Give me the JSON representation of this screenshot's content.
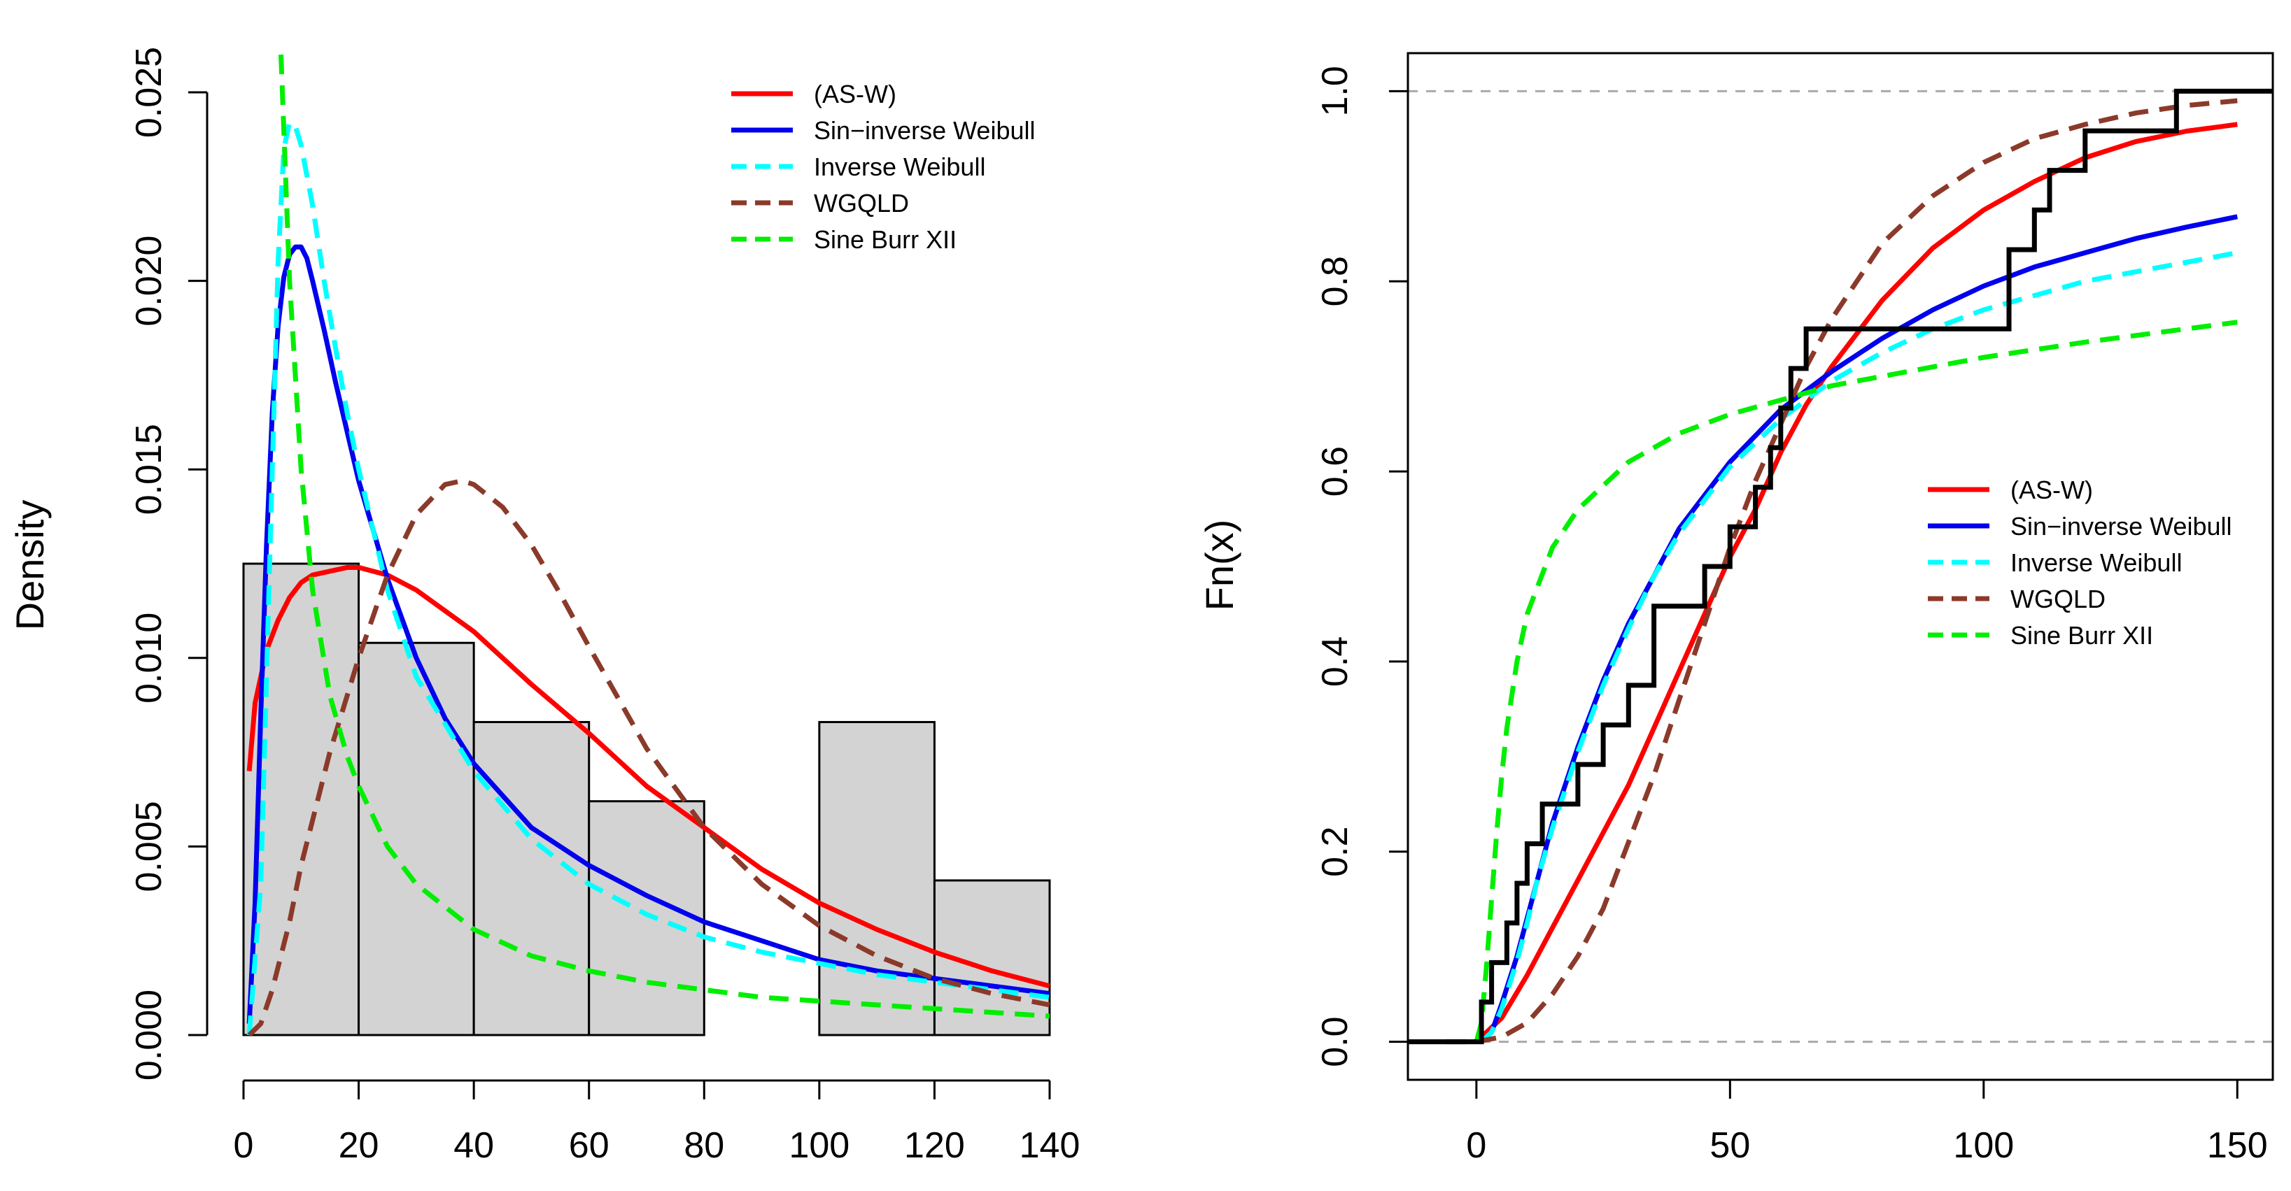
{
  "chart_data": [
    {
      "type": "histogram",
      "title": "",
      "xlabel": "",
      "ylabel": "Density",
      "xlim": [
        0,
        140
      ],
      "ylim": [
        0,
        0.025
      ],
      "x_ticks": [
        "0",
        "20",
        "40",
        "60",
        "80",
        "100",
        "120",
        "140"
      ],
      "x_tick_values": [
        0,
        20,
        40,
        60,
        80,
        100,
        120,
        140
      ],
      "y_ticks": [
        "0.000",
        "0.005",
        "0.010",
        "0.015",
        "0.020",
        "0.025"
      ],
      "y_tick_values": [
        0,
        0.005,
        0.01,
        0.015,
        0.02,
        0.025
      ],
      "bins": [
        {
          "from": 0,
          "to": 20,
          "density": 0.0125
        },
        {
          "from": 20,
          "to": 40,
          "density": 0.0104
        },
        {
          "from": 40,
          "to": 60,
          "density": 0.0083
        },
        {
          "from": 60,
          "to": 80,
          "density": 0.0062
        },
        {
          "from": 80,
          "to": 100,
          "density": 0.0
        },
        {
          "from": 100,
          "to": 120,
          "density": 0.0083
        },
        {
          "from": 120,
          "to": 140,
          "density": 0.0041
        }
      ],
      "legend_position": "top-right",
      "series": [
        {
          "name": "(AS-W)",
          "color": "#ff0000",
          "dashed": false,
          "x": [
            1,
            2,
            4,
            6,
            8,
            10,
            12,
            15,
            18,
            20,
            25,
            30,
            40,
            50,
            60,
            70,
            80,
            90,
            100,
            110,
            120,
            130,
            140
          ],
          "y": [
            0.007,
            0.0088,
            0.0102,
            0.011,
            0.0116,
            0.012,
            0.0122,
            0.0123,
            0.0124,
            0.0124,
            0.0122,
            0.0118,
            0.0107,
            0.0093,
            0.008,
            0.0066,
            0.0055,
            0.0044,
            0.0035,
            0.0028,
            0.0022,
            0.0017,
            0.0013
          ]
        },
        {
          "name": "Sin−inverse Weibull",
          "color": "#0000ee",
          "dashed": false,
          "x": [
            1,
            2,
            3,
            4,
            5,
            6,
            7,
            8,
            9,
            10,
            11,
            12,
            14,
            16,
            18,
            20,
            25,
            30,
            35,
            40,
            50,
            60,
            70,
            80,
            90,
            100,
            110,
            120,
            130,
            140
          ],
          "y": [
            0.0003,
            0.0035,
            0.0085,
            0.013,
            0.0165,
            0.0188,
            0.0201,
            0.0207,
            0.0209,
            0.0209,
            0.0206,
            0.02,
            0.0187,
            0.0173,
            0.016,
            0.0147,
            0.0121,
            0.01,
            0.0084,
            0.0072,
            0.0055,
            0.0045,
            0.0037,
            0.003,
            0.0025,
            0.002,
            0.0017,
            0.0015,
            0.0013,
            0.0011
          ]
        },
        {
          "name": "Inverse Weibull",
          "color": "#00ffff",
          "dashed": true,
          "x": [
            1,
            3,
            5,
            6,
            7,
            8,
            9,
            10,
            12,
            14,
            16,
            18,
            20,
            25,
            30,
            40,
            50,
            60,
            70,
            80,
            90,
            100,
            110,
            120,
            130,
            140
          ],
          "y": [
            0.0,
            0.004,
            0.015,
            0.0205,
            0.0235,
            0.0242,
            0.0241,
            0.0236,
            0.022,
            0.02,
            0.0182,
            0.0165,
            0.015,
            0.0118,
            0.0095,
            0.007,
            0.0052,
            0.004,
            0.0032,
            0.0026,
            0.0022,
            0.0019,
            0.0016,
            0.0014,
            0.0012,
            0.001
          ]
        },
        {
          "name": "WGQLD",
          "color": "#8b3a2a",
          "dashed": true,
          "x": [
            1,
            3,
            5,
            8,
            10,
            15,
            20,
            25,
            30,
            35,
            38,
            40,
            45,
            50,
            55,
            60,
            70,
            80,
            90,
            100,
            110,
            120,
            130,
            140
          ],
          "y": [
            0.0,
            0.0003,
            0.0012,
            0.003,
            0.0045,
            0.0075,
            0.01,
            0.0122,
            0.0138,
            0.0146,
            0.0147,
            0.0146,
            0.014,
            0.013,
            0.0117,
            0.0103,
            0.0076,
            0.0055,
            0.004,
            0.0029,
            0.0021,
            0.0015,
            0.0011,
            0.0008
          ]
        },
        {
          "name": "Sine Burr XII",
          "color": "#00ee00",
          "dashed": true,
          "x": [
            6.5,
            7,
            8,
            10,
            12,
            15,
            18,
            20,
            25,
            30,
            40,
            50,
            60,
            70,
            80,
            90,
            100,
            110,
            120,
            130,
            140
          ],
          "y": [
            0.026,
            0.024,
            0.02,
            0.015,
            0.0118,
            0.009,
            0.0074,
            0.0066,
            0.005,
            0.004,
            0.0028,
            0.0021,
            0.0017,
            0.0014,
            0.0012,
            0.001,
            0.0009,
            0.0008,
            0.0007,
            0.0006,
            0.0005
          ]
        }
      ]
    },
    {
      "type": "line",
      "title": "",
      "xlabel": "",
      "ylabel": "Fn(x)",
      "xlim": [
        -13.5,
        157
      ],
      "ylim": [
        -0.04,
        1.04
      ],
      "x_ticks": [
        "0",
        "50",
        "100",
        "150"
      ],
      "x_tick_values": [
        0,
        50,
        100,
        150
      ],
      "y_ticks": [
        "0.0",
        "0.2",
        "0.4",
        "0.6",
        "0.8",
        "1.0"
      ],
      "y_tick_values": [
        0,
        0.2,
        0.4,
        0.6,
        0.8,
        1.0
      ],
      "reference_lines": [
        0,
        1
      ],
      "legend_position": "center-right",
      "ecdf": {
        "x_start": -13.5,
        "x_end": 157,
        "steps": [
          [
            1,
            0.0417
          ],
          [
            3,
            0.0833
          ],
          [
            6,
            0.125
          ],
          [
            8,
            0.1667
          ],
          [
            10,
            0.2083
          ],
          [
            13,
            0.25
          ],
          [
            20,
            0.2917
          ],
          [
            25,
            0.3333
          ],
          [
            30,
            0.375
          ],
          [
            35,
            0.4583
          ],
          [
            45,
            0.5
          ],
          [
            50,
            0.5417
          ],
          [
            55,
            0.5833
          ],
          [
            58,
            0.625
          ],
          [
            60,
            0.6667
          ],
          [
            62,
            0.7083
          ],
          [
            65,
            0.75
          ],
          [
            105,
            0.8333
          ],
          [
            110,
            0.875
          ],
          [
            113,
            0.9167
          ],
          [
            120,
            0.9583
          ],
          [
            138,
            1.0
          ]
        ]
      },
      "series": [
        {
          "name": "(AS-W)",
          "color": "#ff0000",
          "dashed": false,
          "x": [
            1,
            5,
            10,
            15,
            20,
            25,
            30,
            35,
            40,
            45,
            50,
            55,
            60,
            65,
            70,
            75,
            80,
            90,
            100,
            110,
            120,
            130,
            140,
            150
          ],
          "y": [
            0.005,
            0.025,
            0.07,
            0.12,
            0.17,
            0.22,
            0.27,
            0.33,
            0.39,
            0.45,
            0.51,
            0.56,
            0.62,
            0.67,
            0.71,
            0.745,
            0.78,
            0.835,
            0.875,
            0.905,
            0.93,
            0.947,
            0.958,
            0.965
          ]
        },
        {
          "name": "Sin−inverse Weibull",
          "color": "#0000ee",
          "dashed": false,
          "x": [
            1,
            3,
            5,
            8,
            10,
            12,
            15,
            20,
            25,
            30,
            35,
            40,
            50,
            60,
            70,
            80,
            90,
            100,
            110,
            120,
            130,
            140,
            150
          ],
          "y": [
            0.0,
            0.01,
            0.04,
            0.09,
            0.13,
            0.17,
            0.23,
            0.31,
            0.38,
            0.44,
            0.49,
            0.54,
            0.61,
            0.665,
            0.705,
            0.74,
            0.77,
            0.795,
            0.815,
            0.83,
            0.845,
            0.857,
            0.868
          ]
        },
        {
          "name": "Inverse Weibull",
          "color": "#00ffff",
          "dashed": true,
          "x": [
            1,
            3,
            5,
            8,
            10,
            12,
            15,
            20,
            25,
            30,
            35,
            40,
            50,
            60,
            70,
            80,
            90,
            100,
            110,
            120,
            130,
            140,
            150
          ],
          "y": [
            0.0,
            0.01,
            0.035,
            0.085,
            0.125,
            0.17,
            0.225,
            0.305,
            0.375,
            0.435,
            0.49,
            0.535,
            0.605,
            0.655,
            0.695,
            0.725,
            0.75,
            0.77,
            0.785,
            0.8,
            0.81,
            0.82,
            0.83
          ]
        },
        {
          "name": "WGQLD",
          "color": "#8b3a2a",
          "dashed": true,
          "x": [
            -6,
            0,
            5,
            10,
            15,
            20,
            25,
            30,
            35,
            40,
            45,
            50,
            55,
            60,
            65,
            70,
            75,
            80,
            90,
            100,
            110,
            120,
            130,
            140,
            150
          ],
          "y": [
            0.0,
            0.0,
            0.005,
            0.02,
            0.05,
            0.09,
            0.14,
            0.21,
            0.28,
            0.36,
            0.44,
            0.52,
            0.59,
            0.65,
            0.71,
            0.76,
            0.8,
            0.84,
            0.89,
            0.925,
            0.95,
            0.965,
            0.977,
            0.985,
            0.99
          ]
        },
        {
          "name": "Sine Burr XII",
          "color": "#00ee00",
          "dashed": true,
          "x": [
            0,
            1,
            2,
            3,
            4,
            5,
            6,
            8,
            10,
            15,
            20,
            30,
            40,
            50,
            60,
            70,
            80,
            90,
            100,
            110,
            120,
            130,
            140,
            150
          ],
          "y": [
            0.0,
            0.02,
            0.08,
            0.15,
            0.22,
            0.28,
            0.33,
            0.4,
            0.45,
            0.52,
            0.56,
            0.61,
            0.64,
            0.66,
            0.675,
            0.69,
            0.7,
            0.71,
            0.72,
            0.728,
            0.736,
            0.743,
            0.75,
            0.757
          ]
        }
      ]
    }
  ]
}
